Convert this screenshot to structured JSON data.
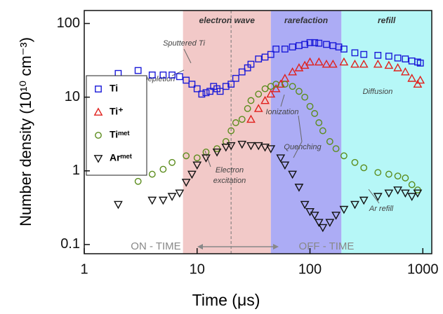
{
  "chart_data": {
    "type": "scatter",
    "x_label": "Time (μs)",
    "y_label": "Number density (10¹⁰ cm⁻³)",
    "xlog": true,
    "ylog": true,
    "xlim": [
      1,
      1200
    ],
    "ylim": [
      0.075,
      150
    ],
    "xticks": [
      1,
      10,
      100,
      1000
    ],
    "yticks": [
      0.1,
      1,
      10,
      100
    ],
    "legend": "center left",
    "regions": [
      {
        "label": "electron wave",
        "range": [
          7.5,
          45
        ],
        "color": "#f2c9c8"
      },
      {
        "label": "rarefaction",
        "range": [
          45,
          190
        ],
        "color": "#acacf5"
      },
      {
        "label": "refill",
        "range": [
          190,
          1200
        ],
        "color": "#b6f7f7"
      }
    ],
    "divider": 20,
    "annotations": [
      "Sputtered Ti",
      "Depletion",
      "Ionization",
      "Diffusion",
      "Quenching",
      "Electron",
      "excitation",
      "Ar refill",
      "ON - TIME",
      "OFF - TIME"
    ],
    "series": [
      {
        "name": "Ti",
        "color": "#1a1ad8",
        "marker": "square",
        "x": [
          2,
          3,
          4,
          5,
          6,
          7,
          8,
          9,
          10,
          11,
          12,
          13,
          14,
          15,
          16,
          18,
          20,
          22,
          25,
          28,
          30,
          35,
          40,
          45,
          50,
          60,
          70,
          80,
          90,
          100,
          110,
          120,
          140,
          160,
          180,
          200,
          250,
          300,
          400,
          500,
          600,
          700,
          800,
          900,
          950
        ],
        "values": [
          21,
          23,
          20,
          20,
          20,
          19,
          17,
          15,
          13,
          11,
          11.5,
          12,
          14,
          13,
          12,
          14,
          15,
          18,
          22,
          25,
          28,
          33,
          35,
          38,
          45,
          45,
          48,
          50,
          52,
          55,
          55,
          54,
          52,
          50,
          48,
          45,
          40,
          38,
          37,
          36,
          34,
          33,
          31,
          30,
          29
        ]
      },
      {
        "name": "Ti⁺",
        "color": "#e0201c",
        "marker": "triangle-up",
        "x": [
          30,
          35,
          40,
          45,
          50,
          55,
          60,
          70,
          80,
          90,
          100,
          120,
          140,
          160,
          200,
          250,
          300,
          400,
          500,
          600,
          700,
          800,
          900,
          950
        ],
        "values": [
          5,
          7,
          9,
          11,
          13,
          15,
          18,
          22,
          25,
          27,
          30,
          30,
          28,
          28,
          30,
          28,
          28,
          28,
          27,
          25,
          22,
          18,
          15,
          17
        ]
      },
      {
        "name": "Tiᵐᵉᵗ",
        "color": "#5b8c1c",
        "marker": "circle",
        "x": [
          2,
          3,
          4,
          5,
          6,
          8,
          10,
          12,
          15,
          18,
          20,
          22,
          25,
          28,
          30,
          35,
          40,
          45,
          50,
          60,
          70,
          80,
          90,
          100,
          110,
          120,
          130,
          150,
          170,
          200,
          250,
          300,
          400,
          500,
          600,
          700,
          800,
          900
        ],
        "values": [
          1.05,
          0.72,
          0.9,
          1.05,
          1.3,
          1.6,
          1.5,
          1.8,
          2.0,
          2.5,
          3.5,
          4.5,
          5,
          7,
          9,
          11,
          13,
          14,
          15,
          15,
          14,
          12,
          10,
          7.5,
          6,
          4.5,
          3.5,
          2.5,
          2,
          1.6,
          1.3,
          1.1,
          0.95,
          0.9,
          0.85,
          0.8,
          0.65,
          0.55
        ]
      },
      {
        "name": "Arᵐᵉᵗ",
        "color": "#111111",
        "marker": "triangle-down",
        "x": [
          2,
          4,
          5,
          6,
          7,
          8,
          9,
          10,
          12,
          15,
          18,
          20,
          25,
          30,
          35,
          40,
          45,
          55,
          60,
          70,
          80,
          90,
          100,
          110,
          120,
          130,
          150,
          170,
          200,
          250,
          300,
          400,
          500,
          600,
          700,
          800,
          900
        ],
        "values": [
          0.35,
          0.4,
          0.4,
          0.45,
          0.5,
          0.7,
          0.9,
          1.2,
          1.5,
          1.8,
          2.1,
          2.2,
          2.3,
          2.2,
          2.2,
          2.1,
          2.0,
          1.5,
          1.2,
          0.9,
          0.6,
          0.35,
          0.28,
          0.25,
          0.2,
          0.17,
          0.2,
          0.25,
          0.3,
          0.35,
          0.4,
          0.45,
          0.5,
          0.55,
          0.5,
          0.45,
          0.5
        ]
      }
    ]
  }
}
